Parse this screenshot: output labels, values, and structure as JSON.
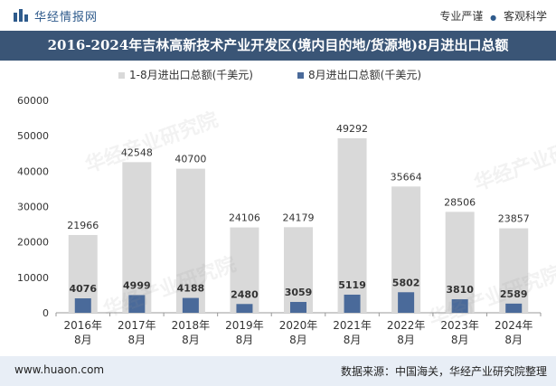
{
  "header": {
    "brand": "华经情报网",
    "slogan_left": "专业严谨",
    "slogan_sep": "●",
    "slogan_right": "客观科学"
  },
  "title": "2016-2024年吉林高新技术产业开发区(境内目的地/货源地)8月进出口总额",
  "footer": {
    "url": "www.huaon.com",
    "source": "数据来源：中国海关，华经产业研究院整理"
  },
  "watermark": "华经产业研究院",
  "colors": {
    "series1": "#d9d9d9",
    "series2": "#4a6a9a",
    "title_bg": "#3a5576",
    "footer_bg": "#e8eef6"
  },
  "chart_data": {
    "type": "bar",
    "categories": [
      "2016年\n8月",
      "2017年\n8月",
      "2018年\n8月",
      "2019年\n8月",
      "2020年\n8月",
      "2021年\n8月",
      "2022年\n8月",
      "2023年\n8月",
      "2024年\n8月"
    ],
    "series": [
      {
        "name": "1-8月进出口总额(千美元)",
        "values": [
          21966,
          42548,
          40700,
          24106,
          24179,
          49292,
          35664,
          28506,
          23857
        ]
      },
      {
        "name": "8月进出口总额(千美元)",
        "values": [
          4076,
          4999,
          4188,
          2480,
          3059,
          5119,
          5802,
          3810,
          2589
        ]
      }
    ],
    "ylim": [
      0,
      60000
    ],
    "yticks": [
      0,
      10000,
      20000,
      30000,
      40000,
      50000,
      60000
    ],
    "legend_position": "top-center",
    "grid": false
  }
}
